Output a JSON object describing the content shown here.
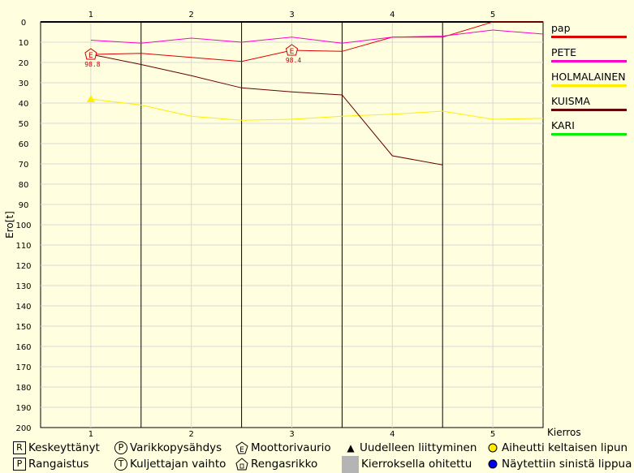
{
  "chart_data": {
    "type": "line",
    "ylabel": "Ero[t]",
    "xlabel": "Kierros",
    "ylim": [
      0,
      200
    ],
    "y_reversed": true,
    "x_range": [
      0.5,
      5.5
    ],
    "x_ticks": [
      "1",
      "2",
      "3",
      "4",
      "5"
    ],
    "y_ticks": [
      "0",
      "10",
      "20",
      "30",
      "40",
      "50",
      "60",
      "70",
      "80",
      "90",
      "100",
      "110",
      "120",
      "130",
      "140",
      "150",
      "160",
      "170",
      "180",
      "190",
      "200"
    ],
    "series": [
      {
        "name": "pap",
        "color": "#dd0000",
        "x": [
          1,
          1.5,
          2,
          2.5,
          3,
          3.5,
          4,
          4.5,
          5,
          5.5
        ],
        "values": [
          16,
          15.5,
          17.5,
          19.5,
          14,
          14.5,
          7.5,
          7.5,
          0,
          0
        ]
      },
      {
        "name": "PETE",
        "color": "#ff00cc",
        "x": [
          1,
          1.5,
          2,
          2.5,
          3,
          3.5,
          4,
          4.5,
          5,
          5.5
        ],
        "values": [
          9,
          10.5,
          8,
          10,
          7.5,
          10.5,
          7.5,
          7,
          4,
          6
        ]
      },
      {
        "name": "HOLMALAINEN",
        "color": "#ffee00",
        "x": [
          1,
          1.5,
          2,
          2.5,
          3,
          3.5,
          4,
          4.5,
          5,
          5.5
        ],
        "values": [
          38,
          41,
          46.5,
          48.5,
          48,
          46.5,
          45.5,
          44,
          48,
          47.5
        ]
      },
      {
        "name": "KUISMA",
        "color": "#660000",
        "x": [
          1,
          1.5,
          2,
          2.5,
          3,
          3.5,
          4,
          4.5
        ],
        "values": [
          16,
          21,
          26.5,
          32.5,
          34.5,
          36,
          66,
          70.5
        ]
      },
      {
        "name": "KARI",
        "color": "#00ee00",
        "x": [],
        "values": []
      }
    ],
    "annotations": [
      {
        "type": "engine",
        "x": 1,
        "y": 16,
        "label": "98.8",
        "color": "#cc0000"
      },
      {
        "type": "engine",
        "x": 3,
        "y": 14,
        "label": "98.4",
        "color": "#cc0000"
      },
      {
        "type": "rejoin",
        "x": 1,
        "y": 38,
        "color": "#ffee00"
      }
    ]
  },
  "key": [
    {
      "icon": "R",
      "label": "Keskeyttänyt"
    },
    {
      "icon": "P",
      "label": "Varikkopysähdys"
    },
    {
      "icon": "E",
      "label": "Moottorivaurio"
    },
    {
      "icon": "▲",
      "label": "Uudelleen liittyminen"
    },
    {
      "icon": "●",
      "label": "Aiheutti keltaisen lipun"
    },
    {
      "icon": "P",
      "label": "Rangaistus"
    },
    {
      "icon": "T",
      "label": "Kuljettajan vaihto"
    },
    {
      "icon": "⌂",
      "label": "Rengasrikko"
    },
    {
      "icon": "■",
      "label": "Kierroksella ohitettu"
    },
    {
      "icon": "●",
      "label": "Näytettiin sinistä lippua"
    }
  ]
}
